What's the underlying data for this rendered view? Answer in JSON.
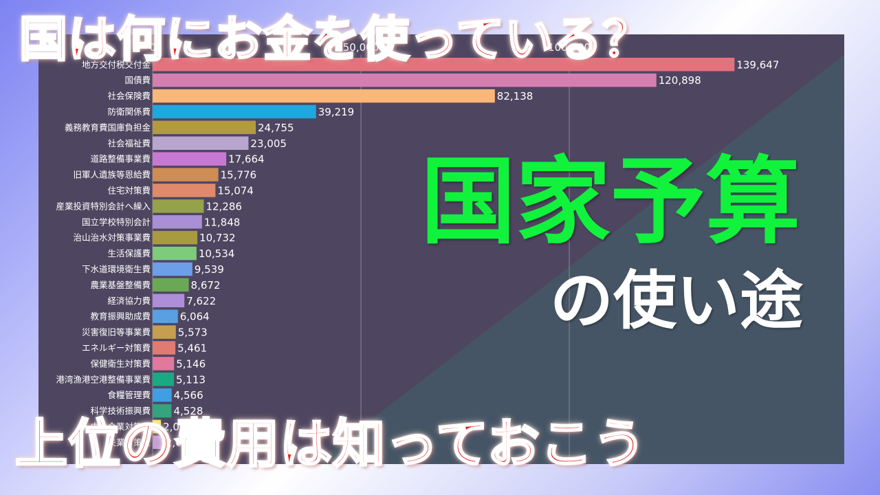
{
  "headline_top": "国は何にお金を使っている？",
  "headline_bottom": "上位の費用は知っておこう",
  "main_title": "国家予算",
  "sub_title": "の使い途",
  "colors": {
    "panel_left": "#4e4660",
    "panel_right": "#465565",
    "headline": "#e8231c",
    "main_title": "#11f23c"
  },
  "chart_data": {
    "type": "bar",
    "orientation": "horizontal",
    "x_ticks": [
      "0",
      "50,000",
      "100,000"
    ],
    "x_tick_values": [
      0,
      50000,
      100000
    ],
    "xlim": [
      0,
      165000
    ],
    "grid": true,
    "categories": [
      "地方交付税交付金",
      "国債費",
      "社会保険費",
      "防衛関係費",
      "義務教育費国庫負担金",
      "社会福祉費",
      "道路整備事業費",
      "旧軍人遺族等恩給費",
      "住宅対策費",
      "産業投資特別会計へ繰入",
      "国立学校特別会計",
      "治山治水対策事業費",
      "生活保護費",
      "下水道環境衛生費",
      "農業基盤整備費",
      "経済協力費",
      "教育振興助成費",
      "災害復旧等事業費",
      "エネルギー対策費",
      "保健衛生対策費",
      "港湾漁港空港整備事業費",
      "食糧管理費",
      "科学技術振興費",
      "中小企業対策費",
      "失業対策費"
    ],
    "values": [
      139647,
      120898,
      82138,
      39219,
      24755,
      23005,
      17664,
      15776,
      15074,
      12286,
      11848,
      10732,
      10534,
      9539,
      8672,
      7622,
      6064,
      5573,
      5461,
      5146,
      5113,
      4566,
      4528,
      2000,
      2616
    ],
    "value_labels": [
      "139,647",
      "120,898",
      "82,138",
      "39,219",
      "24,755",
      "23,005",
      "17,664",
      "15,776",
      "15,074",
      "12,286",
      "11,848",
      "10,732",
      "10,534",
      "9,539",
      "8,672",
      "7,622",
      "6,064",
      "5,573",
      "5,461",
      "5,146",
      "5,113",
      "4,566",
      "4,528",
      "2,000",
      "2,616"
    ],
    "bar_colors": [
      "#e3727c",
      "#d57fb0",
      "#fbb77a",
      "#1ea8dd",
      "#b29a3f",
      "#b8a6ce",
      "#c878d2",
      "#cd8d54",
      "#df8a6a",
      "#95a24a",
      "#a98fd6",
      "#a89a3f",
      "#7ecb7c",
      "#6d9ee8",
      "#6ba855",
      "#ae8ed8",
      "#58a0e2",
      "#c69e50",
      "#e07b72",
      "#e1789e",
      "#1aa983",
      "#3f9fe2",
      "#35a37e",
      "#f3ea63",
      "#c59ed9"
    ]
  }
}
